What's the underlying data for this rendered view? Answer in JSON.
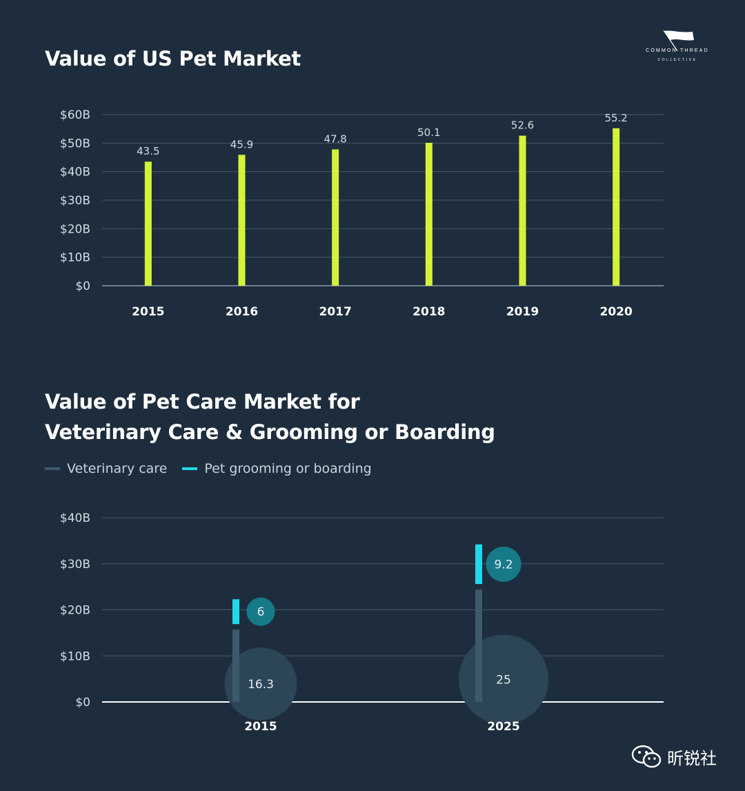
{
  "colors": {
    "background": "#1e2d3d",
    "grid": "#46586a",
    "bar": "#d4f23a",
    "vet": "#3c5a6b",
    "groom": "#1fd8ea",
    "groom_bubble": "#167a88",
    "vet_bubble": "#2c4657"
  },
  "logo": {
    "name": "COMMON THREAD",
    "sub": "COLLECTIVE",
    "icon": "flag-icon"
  },
  "watermark": {
    "text": "昕锐社",
    "icon": "wechat-icon"
  },
  "chart_data": [
    {
      "type": "bar",
      "title": "Value of US Pet Market",
      "categories": [
        "2015",
        "2016",
        "2017",
        "2018",
        "2019",
        "2020"
      ],
      "values": [
        43.5,
        45.9,
        47.8,
        50.1,
        52.6,
        55.2
      ],
      "value_labels": [
        "43.5",
        "45.9",
        "47.8",
        "50.1",
        "52.6",
        "55.2"
      ],
      "yticks": [
        0,
        10,
        20,
        30,
        40,
        50,
        60
      ],
      "ytick_labels": [
        "$0",
        "$10B",
        "$20B",
        "$30B",
        "$40B",
        "$50B",
        "$60B"
      ],
      "ylim": [
        0,
        60
      ],
      "grid": true
    },
    {
      "type": "bar",
      "title_lines": [
        "Value of Pet Care Market for",
        "Veterinary Care & Grooming or Boarding"
      ],
      "categories": [
        "2015",
        "2025"
      ],
      "series": [
        {
          "name": "Veterinary care",
          "values": [
            16.3,
            25
          ],
          "labels": [
            "16.3",
            "25"
          ]
        },
        {
          "name": "Pet grooming or boarding",
          "values": [
            6,
            9.2
          ],
          "labels": [
            "6",
            "9.2"
          ]
        }
      ],
      "stacked": true,
      "yticks": [
        0,
        10,
        20,
        30,
        40
      ],
      "ytick_labels": [
        "$0",
        "$10B",
        "$20B",
        "$30B",
        "$40B"
      ],
      "ylim": [
        0,
        40
      ],
      "grid": true,
      "legend": "top-left"
    }
  ]
}
